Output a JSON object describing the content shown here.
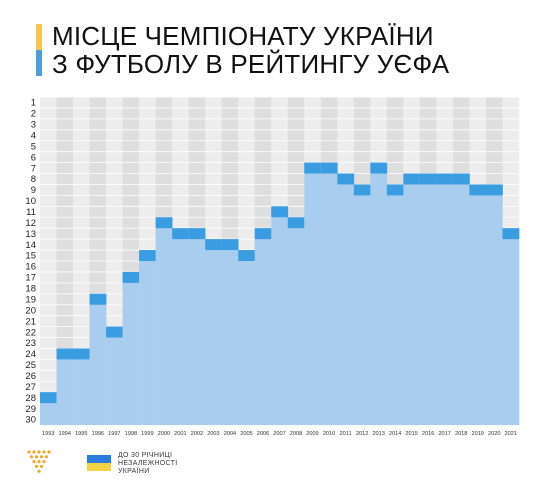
{
  "title": {
    "line1": "МІСЦЕ ЧЕМПІОНАТУ УКРАЇНИ",
    "line2": "З ФУТБОЛУ В РЕЙТИНГУ УЄФА"
  },
  "colors": {
    "accent_blue": "#3b9de1",
    "fill_blue": "#a9cdee",
    "col_light": "#ededed",
    "col_dark": "#dedede",
    "bar_yellow": "#f6c64c",
    "bar_blue": "#4a9fe0",
    "logo_orange": "#f5a623",
    "flag_blue": "#2d7de0",
    "flag_yellow": "#f6d343"
  },
  "footer": {
    "line1": "ДО 30 РІЧНИЦІ",
    "line2": "НЕЗАЛЕЖНОСТІ",
    "line3": "УКРАЇНИ",
    "logo_icon": "dotted-triangle-logo",
    "flag_icon": "ukraine-flag"
  },
  "chart_data": {
    "type": "area",
    "x": [
      "1993",
      "1994",
      "1995",
      "1996",
      "1997",
      "1998",
      "1999",
      "2000",
      "2001",
      "2002",
      "2003",
      "2004",
      "2005",
      "2006",
      "2007",
      "2008",
      "2009",
      "2010",
      "2011",
      "2012",
      "2013",
      "2014",
      "2015",
      "2016",
      "2017",
      "2018",
      "2019",
      "2020",
      "2021"
    ],
    "values": [
      28,
      24,
      24,
      19,
      22,
      17,
      15,
      12,
      13,
      13,
      14,
      14,
      15,
      13,
      11,
      12,
      7,
      7,
      8,
      9,
      7,
      9,
      8,
      8,
      8,
      8,
      9,
      9,
      13
    ],
    "y_ticks": [
      1,
      2,
      3,
      4,
      5,
      6,
      7,
      8,
      9,
      10,
      11,
      12,
      13,
      14,
      15,
      16,
      17,
      18,
      19,
      20,
      21,
      22,
      23,
      24,
      25,
      26,
      27,
      28,
      29,
      30
    ],
    "ylim": [
      1,
      30
    ],
    "y_inverted": true,
    "grid": true
  }
}
